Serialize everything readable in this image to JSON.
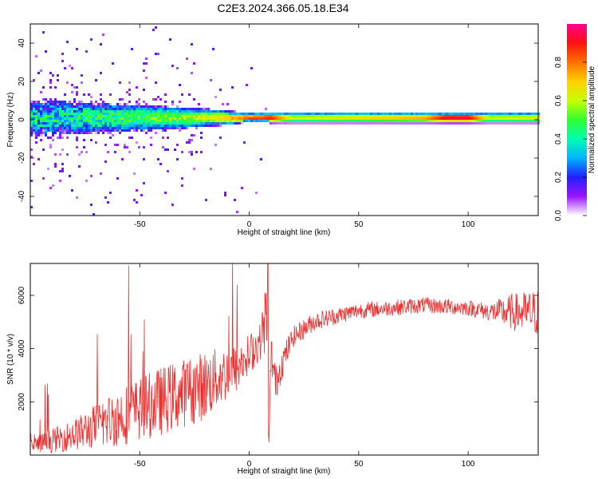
{
  "page_title": "C2E3.2024.366.05.18.E34",
  "chart_data": [
    {
      "type": "heatmap",
      "title": "C2E3.2024.366.05.18.E34",
      "xlabel": "Height of straight line (km)",
      "ylabel": "Frequency (Hz)",
      "xlim": [
        -100,
        132
      ],
      "ylim": [
        -50,
        50
      ],
      "x_ticks": [
        -50,
        0,
        50,
        100
      ],
      "y_ticks": [
        -40,
        -20,
        0,
        20,
        40
      ],
      "colorbar": {
        "label": "Normalized spectral amplitude",
        "range": [
          0,
          1
        ],
        "ticks": [
          0.0,
          0.2,
          0.4,
          0.6,
          0.8
        ],
        "tick_labels": [
          "0.0",
          "0.2",
          "0.4",
          "0.6",
          "0.8"
        ],
        "colormap": [
          "#ffffff",
          "#9c14ff",
          "#2020ff",
          "#00b4ff",
          "#00ffb0",
          "#30ff30",
          "#c8ff00",
          "#ffd000",
          "#ff7000",
          "#ff1010",
          "#ff0090"
        ]
      },
      "band": {
        "center_frequency_hz": 1,
        "points": [
          {
            "x": -100,
            "halfwidth_hz": 10,
            "peak": 0.35
          },
          {
            "x": -60,
            "halfwidth_hz": 8,
            "peak": 0.45
          },
          {
            "x": -30,
            "halfwidth_hz": 6,
            "peak": 0.55
          },
          {
            "x": -10,
            "halfwidth_hz": 4,
            "peak": 0.7
          },
          {
            "x": 0,
            "halfwidth_hz": 2.5,
            "peak": 0.85
          },
          {
            "x": 10,
            "halfwidth_hz": 3,
            "peak": 0.9
          },
          {
            "x": 20,
            "halfwidth_hz": 3,
            "peak": 0.6
          },
          {
            "x": 80,
            "halfwidth_hz": 3,
            "peak": 0.75
          },
          {
            "x": 90,
            "halfwidth_hz": 3,
            "peak": 0.95
          },
          {
            "x": 100,
            "halfwidth_hz": 3,
            "peak": 0.95
          },
          {
            "x": 110,
            "halfwidth_hz": 3,
            "peak": 0.6
          },
          {
            "x": 132,
            "halfwidth_hz": 3,
            "peak": 0.65
          }
        ]
      }
    },
    {
      "type": "line",
      "xlabel": "Height of straight line (km)",
      "ylabel": "SNR (10 * v/v)",
      "xlim": [
        -100,
        132
      ],
      "ylim": [
        0,
        7200
      ],
      "x_ticks": [
        -50,
        0,
        50,
        100
      ],
      "y_ticks": [
        2000,
        4000,
        6000
      ],
      "series_color": "#ee3030",
      "x": [
        -100,
        -80,
        -60,
        -40,
        -20,
        -5,
        5,
        8,
        9,
        10,
        12,
        15,
        20,
        30,
        50,
        80,
        100,
        110,
        120,
        132
      ],
      "y": [
        300,
        700,
        1300,
        1900,
        2500,
        3200,
        4200,
        5200,
        200,
        3800,
        2600,
        3400,
        4400,
        5000,
        5400,
        5600,
        5500,
        5350,
        5300,
        5250
      ],
      "noise_amplitude": [
        300,
        600,
        1100,
        1300,
        1300,
        900,
        700,
        1500,
        200,
        900,
        700,
        600,
        400,
        350,
        300,
        300,
        300,
        350,
        700,
        900
      ],
      "spike_peak": {
        "x": 8.5,
        "y": 7200
      }
    }
  ]
}
